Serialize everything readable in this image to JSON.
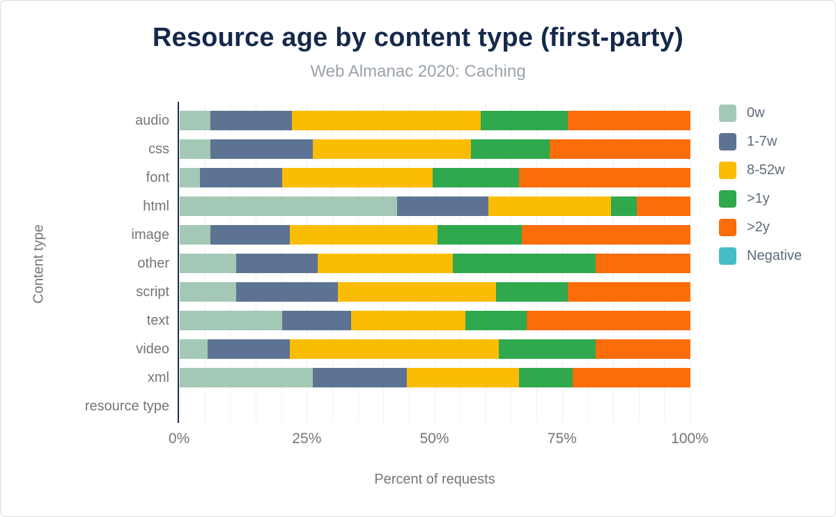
{
  "header": {
    "title": "Resource age by content type (first-party)",
    "subtitle": "Web Almanac 2020: Caching"
  },
  "chart_data": {
    "type": "bar",
    "stacked": true,
    "orientation": "horizontal",
    "title": "Resource age by content type (first-party)",
    "subtitle": "Web Almanac 2020: Caching",
    "xlabel": "Percent of requests",
    "ylabel": "Content type",
    "xlim": [
      0,
      100
    ],
    "x_tick_labels": [
      "0%",
      "25%",
      "50%",
      "75%",
      "100%"
    ],
    "x_tick_values": [
      0,
      25,
      50,
      75,
      100
    ],
    "grid": {
      "minor_vertical_step_percent": 5,
      "color": "#f0f0f4"
    },
    "legend_position": "right",
    "categories": [
      "audio",
      "css",
      "font",
      "html",
      "image",
      "other",
      "script",
      "text",
      "video",
      "xml",
      "resource type"
    ],
    "series": [
      {
        "name": "0w",
        "color": "#a3c9b6",
        "values": [
          6,
          6,
          4,
          42.5,
          6,
          11,
          11,
          20,
          5.5,
          26,
          0
        ]
      },
      {
        "name": "1-7w",
        "color": "#5d7393",
        "values": [
          16,
          20,
          16,
          18,
          15.5,
          16,
          20,
          13.5,
          16,
          18.5,
          0
        ]
      },
      {
        "name": "8-52w",
        "color": "#fbbc04",
        "values": [
          37,
          31,
          29.5,
          24,
          29,
          26.5,
          31,
          22.5,
          41,
          22,
          0
        ]
      },
      {
        "name": ">1y",
        "color": "#2fa84e",
        "values": [
          17,
          15.5,
          17,
          5,
          16.5,
          28,
          14,
          12,
          19,
          10.5,
          0
        ]
      },
      {
        "name": ">2y",
        "color": "#fb6d09",
        "values": [
          24,
          27.5,
          33.5,
          10.5,
          33,
          18.5,
          24,
          32,
          18.5,
          23,
          0
        ]
      },
      {
        "name": "Negative",
        "color": "#46bdc6",
        "values": [
          0,
          0,
          0,
          0,
          0,
          0,
          0,
          0,
          0,
          0,
          0
        ]
      }
    ],
    "axis_color": "#1b2a49",
    "label_color": "#757575",
    "title_color": "#16294a",
    "subtitle_color": "#9aa2ab"
  }
}
